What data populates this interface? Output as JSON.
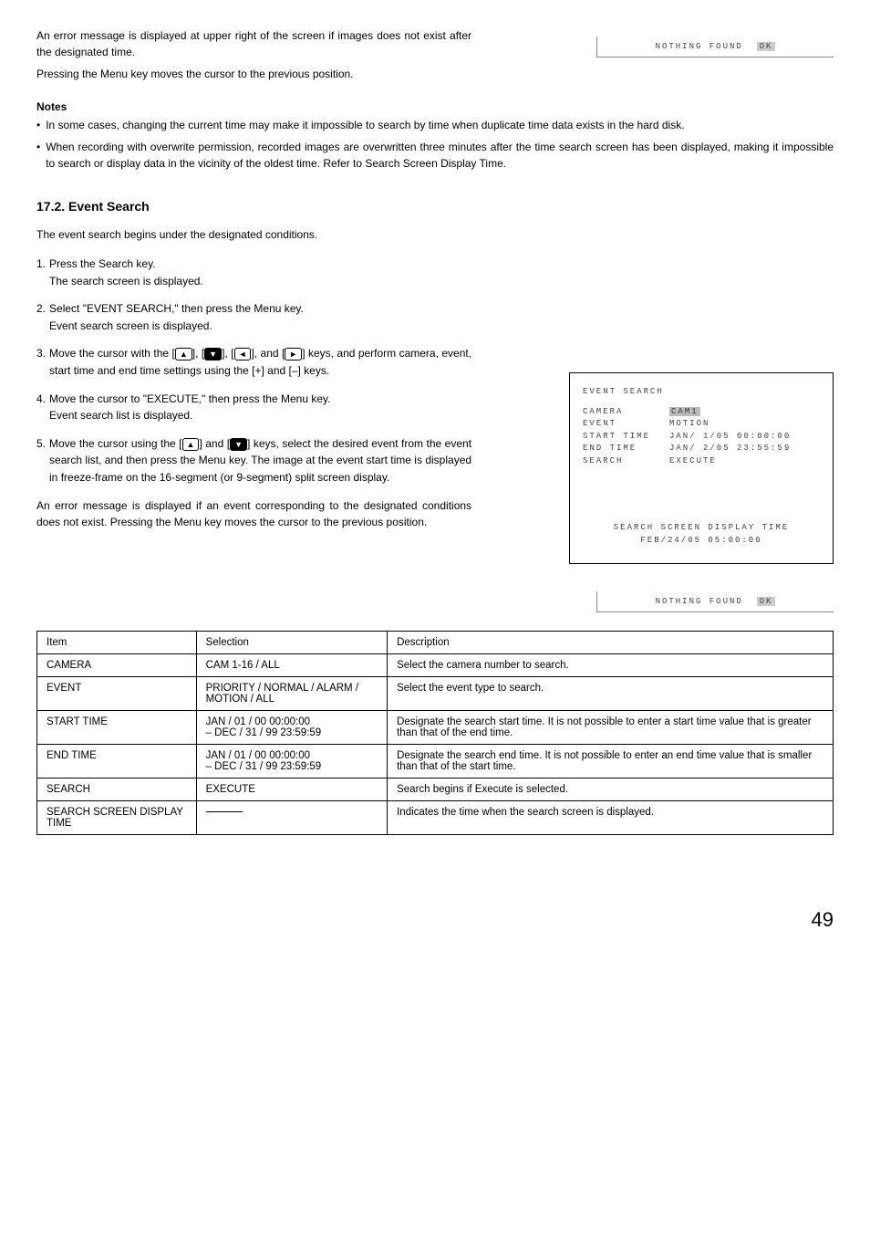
{
  "intro": {
    "p1": "An error message is displayed at upper right of the screen if images does not exist after the designated time.",
    "p2": "Pressing the Menu key moves the cursor to the previous position."
  },
  "status1": {
    "text": "NOTHING FOUND",
    "ok": "OK"
  },
  "notes": {
    "heading": "Notes",
    "items": [
      "In some cases, changing the current time may make it impossible to search by time when duplicate time data exists in the hard disk.",
      "When recording with overwrite permission, recorded images are overwritten three minutes after the time search screen has been displayed, making it impossible to search or display data in the vicinity of the oldest time. Refer to Search Screen Display Time."
    ]
  },
  "section": {
    "heading": "17.2. Event Search",
    "lead": "The event search begins under the designated conditions.",
    "steps": [
      {
        "num": "1.",
        "body": "Press the Search key.\nThe search screen is displayed."
      },
      {
        "num": "2.",
        "body": "Select \"EVENT SEARCH,\" then press the Menu key.\nEvent search screen is displayed."
      },
      {
        "num": "3.",
        "prefix": "Move the cursor with the [",
        "mid1": "], [",
        "mid2": "], [",
        "mid3": "], and [",
        "suffix": "] keys, and perform camera, event, start time and end time settings using the [+] and [–] keys."
      },
      {
        "num": "4.",
        "body": "Move the cursor to \"EXECUTE,\" then press the Menu key.\nEvent search list is displayed."
      },
      {
        "num": "5.",
        "prefix": "Move the cursor using the [",
        "mid1": "] and [",
        "suffix": "] keys, select the desired event from the event search list, and then press the Menu key. The image at the event start time is displayed in freeze-frame on the 16-segment (or 9-segment) split screen display."
      }
    ],
    "closing": "An error message is displayed if an event corresponding to the designated conditions does not exist. Pressing the Menu key moves the cursor to the previous position."
  },
  "terminal": {
    "title": "EVENT SEARCH",
    "rows": [
      {
        "label": "CAMERA",
        "value": "CAM1",
        "hl_value": true
      },
      {
        "label": "EVENT",
        "value": "MOTION"
      },
      {
        "label": "START TIME",
        "value": "JAN/ 1/05  00:00:00"
      },
      {
        "label": "END TIME",
        "value": "JAN/ 2/05  23:55:59"
      },
      {
        "label": "SEARCH",
        "value": "EXECUTE"
      }
    ],
    "footer1": "SEARCH SCREEN DISPLAY TIME",
    "footer2": "FEB/24/05 05:00:00"
  },
  "status2": {
    "text": "NOTHING FOUND",
    "ok": "OK"
  },
  "table": {
    "headers": [
      "Item",
      "Selection",
      "Description"
    ],
    "rows": [
      [
        "CAMERA",
        "CAM 1-16 / ALL",
        "Select the camera number to search."
      ],
      [
        "EVENT",
        "PRIORITY / NORMAL / ALARM / MOTION / ALL",
        "Select the event type to search."
      ],
      [
        "START TIME",
        "JAN / 01 / 00  00:00:00\n– DEC / 31 / 99  23:59:59",
        "Designate the search start time. It is not possible to enter a start time value that is greater than that of the end time."
      ],
      [
        "END TIME",
        "JAN / 01 / 00  00:00:00\n– DEC / 31 / 99  23:59:59",
        "Designate the search end time. It is not possible to enter an end time value that is smaller than that of the start time."
      ],
      [
        "SEARCH",
        "EXECUTE",
        "Search begins if Execute is selected."
      ],
      [
        "SEARCH SCREEN DISPLAY TIME",
        "__DASH__",
        "Indicates the time when the search screen is displayed."
      ]
    ]
  },
  "page_number": "49"
}
